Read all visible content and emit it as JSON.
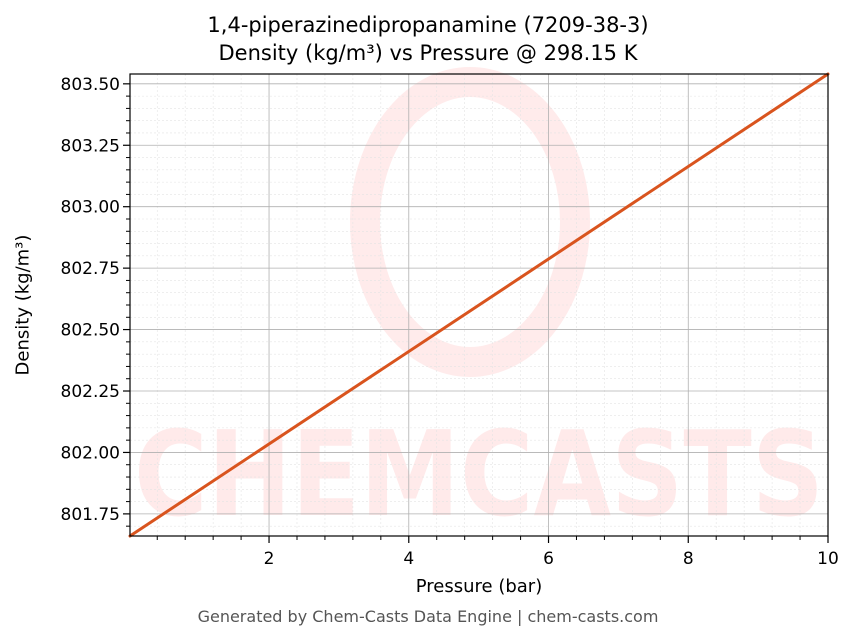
{
  "chart_data": {
    "type": "line",
    "title_line1": "1,4-piperazinedipropanamine (7209-38-3)",
    "title_line2": "Density (kg/m³) vs Pressure @ 298.15 K",
    "xlabel": "Pressure (bar)",
    "ylabel": "Density (kg/m³)",
    "xlim": [
      0.01,
      10
    ],
    "ylim": [
      801.66,
      803.54
    ],
    "x_ticks": [
      2,
      4,
      6,
      8,
      10
    ],
    "x_tick_labels": [
      "2",
      "4",
      "6",
      "8",
      "10"
    ],
    "y_ticks": [
      801.75,
      802.0,
      802.25,
      802.5,
      802.75,
      803.0,
      803.25,
      803.5
    ],
    "y_tick_labels": [
      "801.75",
      "802.00",
      "802.25",
      "802.50",
      "802.75",
      "803.00",
      "803.25",
      "803.50"
    ],
    "grid": true,
    "series": [
      {
        "x": [
          0.01,
          10
        ],
        "y": [
          801.66,
          803.54
        ],
        "color": "#d9541e"
      }
    ],
    "watermark": "CHEMCASTS"
  },
  "footer": "Generated by Chem-Casts Data Engine | chem-casts.com"
}
